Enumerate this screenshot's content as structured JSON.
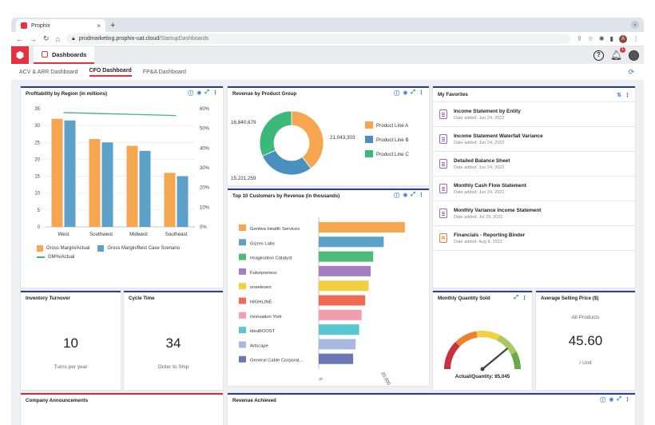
{
  "browser": {
    "tab_title": "Prophix",
    "url_host": "prodmarketing.prophix-uat.cloud",
    "url_path": "/StartupDashboards",
    "avatar_letter": "A"
  },
  "app": {
    "tab_label": "Dashboards",
    "notification_count": "1"
  },
  "dashboard_tabs": [
    "ACV & ARR Dashboard",
    "CFO Dashboard",
    "FP&A Dashboard"
  ],
  "active_dashboard_tab": "CFO Dashboard",
  "profitability": {
    "title": "Profitability by Region (in millions)",
    "chart_data": {
      "type": "bar",
      "categories": [
        "West",
        "Southwest",
        "Midwest",
        "Southeast"
      ],
      "series": [
        {
          "name": "Gross Margin/Actual",
          "values": [
            32,
            26,
            24,
            16
          ],
          "color": "#f7a650"
        },
        {
          "name": "Gross Margin/Best Case Scenario",
          "values": [
            31.5,
            25,
            22.5,
            15
          ],
          "color": "#5ba1c9"
        },
        {
          "name": "GM%/Actual",
          "type": "line",
          "axis": "right",
          "values": [
            58,
            57.5,
            57,
            56.5
          ],
          "color": "#3cb878"
        }
      ],
      "y_left": {
        "min": 0,
        "max": 35,
        "ticks": [
          0,
          5,
          10,
          15,
          20,
          25,
          30,
          35
        ]
      },
      "y_right": {
        "min": 0,
        "max": 60,
        "ticks": [
          "0%",
          "10%",
          "20%",
          "30%",
          "40%",
          "50%",
          "60%"
        ]
      },
      "legend": "bottom"
    }
  },
  "revenue_product": {
    "title": "Revenue by Product Group",
    "chart_data": {
      "type": "pie",
      "labels": [
        "Product Line A",
        "Product Line B",
        "Product Line C"
      ],
      "values": [
        21043303,
        15221259,
        16840679
      ],
      "value_labels": [
        "21,043,303",
        "15,221,259",
        "16,840,679"
      ],
      "colors": [
        "#f7a650",
        "#4b8fc0",
        "#3cb878"
      ],
      "legend": "right"
    }
  },
  "top_customers": {
    "title": "Top 10 Customers by Revenue (in thousands)",
    "chart_data": {
      "type": "bar",
      "orientation": "horizontal",
      "categories": [
        "Gentiva Health Services",
        "Gizmo Labs",
        "Imagination Catalyst",
        "Futurpreneur",
        "oneeleven",
        "HIGHLINE",
        "Innovation York",
        "ideaBOOST",
        "Artscape",
        "General Cable Corporat..."
      ],
      "values": [
        24500,
        18500,
        15500,
        14800,
        14200,
        13200,
        12200,
        11500,
        10500,
        9800
      ],
      "colors": [
        "#f7a650",
        "#5ba1c9",
        "#4dbb7a",
        "#a37fc0",
        "#f3d040",
        "#ee6a52",
        "#f39db1",
        "#58c8d3",
        "#a8b9de",
        "#6c78b5"
      ],
      "x_ticks": [
        "0",
        "20,000"
      ],
      "x_max": 25000
    }
  },
  "favorites": {
    "title": "My Favorites",
    "items": [
      {
        "name": "Income Statement by Entity",
        "date": "Date added: Jun 24, 2022",
        "kind": "report"
      },
      {
        "name": "Income Statement Waterfall Variance",
        "date": "Date added: Jun 24, 2022",
        "kind": "report"
      },
      {
        "name": "Detailed Balance Sheet",
        "date": "Date added: Jun 24, 2022",
        "kind": "report"
      },
      {
        "name": "Monthly Cash Flow Statement",
        "date": "Date added: Jun 24, 2022",
        "kind": "report"
      },
      {
        "name": "Monthly Variance Income Statement",
        "date": "Date added: Jul 29, 2022",
        "kind": "report"
      },
      {
        "name": "Financials - Reporting Binder",
        "date": "Date added: Aug 8, 2022",
        "kind": "binder"
      }
    ]
  },
  "inventory": {
    "title": "Inventory Turnover",
    "value": "10",
    "subtitle": "Turns per year"
  },
  "cycle": {
    "title": "Cycle Time",
    "value": "34",
    "subtitle": "Order to Ship"
  },
  "monthly_qty": {
    "title": "Monthly Quantity Sold",
    "label": "Actual/Quantity: 85,045",
    "gauge_fraction": 0.78
  },
  "asp": {
    "title": "Average Selling Price ($)",
    "subtitle_top": "All Products",
    "value": "45.60",
    "unit": "/ Unit"
  },
  "announcements": {
    "title": "Company Announcements"
  },
  "revenue_achieved": {
    "title": "Revenue Achieved"
  }
}
